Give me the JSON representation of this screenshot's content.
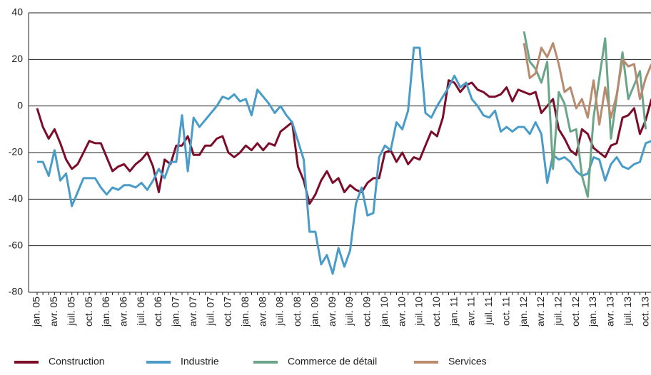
{
  "chart_data": {
    "type": "line",
    "categories": [
      "jan. 05",
      null,
      null,
      "avr. 05",
      null,
      null,
      "juil. 05",
      null,
      null,
      "oct. 05",
      null,
      null,
      "jan. 06",
      null,
      null,
      "avr. 06",
      null,
      null,
      "juil. 06",
      null,
      null,
      "oct. 06",
      null,
      null,
      "jan. 07",
      null,
      null,
      "avr. 07",
      null,
      null,
      "juil. 07",
      null,
      null,
      "oct. 07",
      null,
      null,
      "jan. 08",
      null,
      null,
      "avr. 08",
      null,
      null,
      "juil. 08",
      null,
      null,
      "oct. 08",
      null,
      null,
      "jan. 09",
      null,
      null,
      "avr. 09",
      null,
      null,
      "juil. 09",
      null,
      null,
      "oct. 09",
      null,
      null,
      "jan. 10",
      null,
      null,
      "avr. 10",
      null,
      null,
      "juil. 10",
      null,
      null,
      "oct. 10",
      null,
      null,
      "jan. 11",
      null,
      null,
      "avr. 11",
      null,
      null,
      "juil. 11",
      null,
      null,
      "oct. 11",
      null,
      null,
      "jan. 12",
      null,
      null,
      "avr. 12",
      null,
      null,
      "juil. 12",
      null,
      null,
      "oct. 12",
      null,
      null,
      "jan. 13",
      null,
      null,
      "avr. 13",
      null,
      null,
      "juil. 13",
      null,
      null,
      "oct. 13",
      null
    ],
    "series": [
      {
        "name": "Construction",
        "color": "#7b0d2a",
        "values": [
          -1,
          -9,
          -14,
          -10,
          -16,
          -23,
          -27,
          -25,
          -20,
          -15,
          -16,
          -16,
          -22,
          -28,
          -26,
          -25,
          -28,
          -25,
          -23,
          -20,
          -26,
          -37,
          -23,
          -25,
          -17,
          -17,
          -13,
          -21,
          -21,
          -17,
          -17,
          -14,
          -13,
          -20,
          -22,
          -20,
          -17,
          -19,
          -16,
          -19,
          -16,
          -17,
          -11,
          -9,
          -7,
          -26,
          -32,
          -42,
          -38,
          -32,
          -28,
          -33,
          -31,
          -37,
          -34,
          -36,
          -37,
          -33,
          -31,
          -31,
          -20,
          -19,
          -24,
          -20,
          -25,
          -22,
          -23,
          -17,
          -11,
          -13,
          -5,
          11,
          10,
          6,
          9,
          10,
          7,
          6,
          4,
          4,
          5,
          8,
          2,
          7,
          6,
          5,
          6,
          -3,
          0,
          3,
          -10,
          -14,
          -19,
          -21,
          -10,
          -12,
          -18,
          -20,
          -22,
          -17,
          -16,
          -5,
          -4,
          -1,
          -12,
          -6,
          3
        ]
      },
      {
        "name": "Industrie",
        "color": "#4a9cc8",
        "values": [
          -24,
          -24,
          -30,
          -19,
          -32,
          -29,
          -43,
          -37,
          -31,
          -31,
          -31,
          -35,
          -38,
          -35,
          -36,
          -34,
          -34,
          -35,
          -33,
          -36,
          -32,
          -27,
          -31,
          -24,
          -24,
          -4,
          -28,
          -5,
          -9,
          -6,
          -3,
          0,
          4,
          3,
          5,
          2,
          3,
          -4,
          7,
          4,
          1,
          -3,
          0,
          -4,
          -7,
          -15,
          -23,
          -54,
          -54,
          -68,
          -64,
          -72,
          -61,
          -69,
          -62,
          -42,
          -35,
          -47,
          -46,
          -22,
          -17,
          -19,
          -7,
          -10,
          -2,
          25,
          25,
          -3,
          -5,
          0,
          4,
          8,
          13,
          8,
          10,
          3,
          0,
          -4,
          -5,
          -2,
          -11,
          -9,
          -11,
          -9,
          -9,
          -12,
          -7,
          -12,
          -33,
          -21,
          -23,
          -22,
          -24,
          -28,
          -30,
          -29,
          -22,
          -23,
          -32,
          -25,
          -22,
          -26,
          -27,
          -25,
          -24,
          -16,
          -15
        ]
      },
      {
        "name": "Commerce de détail",
        "color": "#6aa58a",
        "values": [
          null,
          null,
          null,
          null,
          null,
          null,
          null,
          null,
          null,
          null,
          null,
          null,
          null,
          null,
          null,
          null,
          null,
          null,
          null,
          null,
          null,
          null,
          null,
          null,
          null,
          null,
          null,
          null,
          null,
          null,
          null,
          null,
          null,
          null,
          null,
          null,
          null,
          null,
          null,
          null,
          null,
          null,
          null,
          null,
          null,
          null,
          null,
          null,
          null,
          null,
          null,
          null,
          null,
          null,
          null,
          null,
          null,
          null,
          null,
          null,
          null,
          null,
          null,
          null,
          null,
          null,
          null,
          null,
          null,
          null,
          null,
          null,
          null,
          null,
          null,
          null,
          null,
          null,
          null,
          null,
          null,
          null,
          null,
          null,
          32,
          19,
          16,
          10,
          19,
          -27,
          6,
          1,
          -11,
          -10,
          -30,
          -39,
          -5,
          12,
          29,
          -14,
          4,
          23,
          3,
          9,
          15,
          -10,
          null
        ]
      },
      {
        "name": "Services",
        "color": "#b88a6e",
        "values": [
          null,
          null,
          null,
          null,
          null,
          null,
          null,
          null,
          null,
          null,
          null,
          null,
          null,
          null,
          null,
          null,
          null,
          null,
          null,
          null,
          null,
          null,
          null,
          null,
          null,
          null,
          null,
          null,
          null,
          null,
          null,
          null,
          null,
          null,
          null,
          null,
          null,
          null,
          null,
          null,
          null,
          null,
          null,
          null,
          null,
          null,
          null,
          null,
          null,
          null,
          null,
          null,
          null,
          null,
          null,
          null,
          null,
          null,
          null,
          null,
          null,
          null,
          null,
          null,
          null,
          null,
          null,
          null,
          null,
          null,
          null,
          null,
          null,
          null,
          null,
          null,
          null,
          null,
          null,
          null,
          null,
          null,
          null,
          null,
          27,
          12,
          14,
          25,
          21,
          27,
          18,
          6,
          8,
          -1,
          3,
          -5,
          11,
          -8,
          8,
          -5,
          5,
          20,
          17,
          18,
          3,
          12,
          18
        ]
      }
    ],
    "ylim": [
      -80,
      40
    ],
    "yticks": [
      -80,
      -60,
      -40,
      -20,
      0,
      20,
      40
    ],
    "grid": true,
    "legend": "bottom"
  }
}
